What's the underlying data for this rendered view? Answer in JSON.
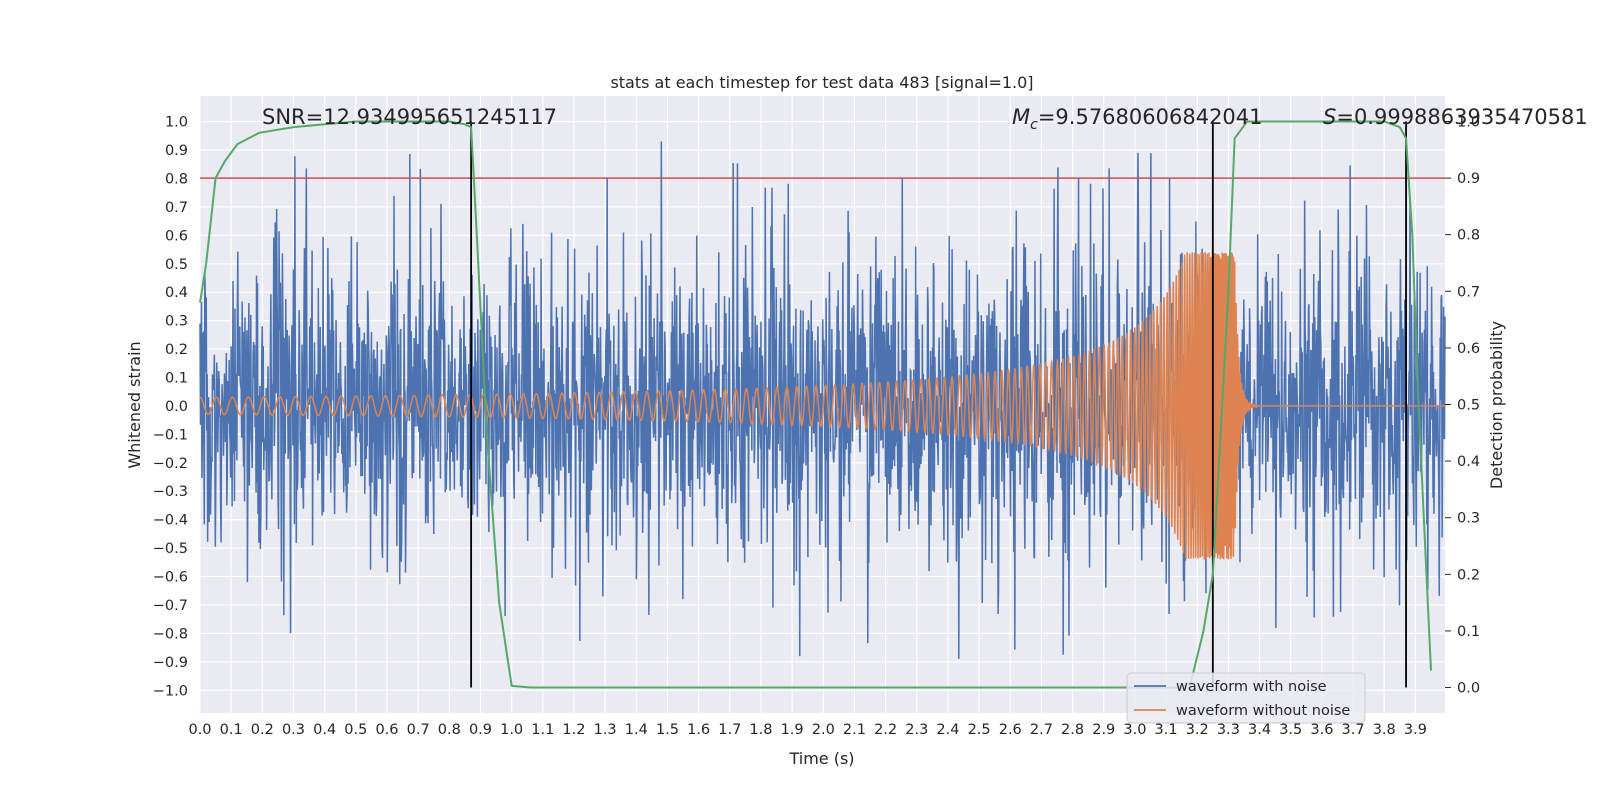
{
  "chart_data": {
    "type": "line",
    "title": "stats at each timestep for test data 483 [signal=1.0]",
    "xlabel": "Time (s)",
    "ylabel": "Whitened strain",
    "y2label": "Detection probability",
    "xlim": [
      0.0,
      3.995
    ],
    "ylim": [
      -1.08,
      1.09
    ],
    "y2lim": [
      -0.045,
      1.045
    ],
    "xticks": [
      "0.0",
      "0.1",
      "0.2",
      "0.3",
      "0.4",
      "0.5",
      "0.6",
      "0.7",
      "0.8",
      "0.9",
      "1.0",
      "1.1",
      "1.2",
      "1.3",
      "1.4",
      "1.5",
      "1.6",
      "1.7",
      "1.8",
      "1.9",
      "2.0",
      "2.1",
      "2.2",
      "2.3",
      "2.4",
      "2.5",
      "2.6",
      "2.7",
      "2.8",
      "2.9",
      "3.0",
      "3.1",
      "3.2",
      "3.3",
      "3.4",
      "3.5",
      "3.6",
      "3.7",
      "3.8",
      "3.9"
    ],
    "yticks": [
      "1.0",
      "0.9",
      "0.8",
      "0.7",
      "0.6",
      "0.5",
      "0.4",
      "0.3",
      "0.2",
      "0.1",
      "0.0",
      "−0.1",
      "−0.2",
      "−0.3",
      "−0.4",
      "−0.5",
      "−0.6",
      "−0.7",
      "−0.8",
      "−0.9",
      "−1.0"
    ],
    "y2ticks": [
      "1.0",
      "0.9",
      "0.8",
      "0.7",
      "0.6",
      "0.5",
      "0.4",
      "0.3",
      "0.2",
      "0.1",
      "0.0"
    ],
    "grid": true,
    "legend_position": "lower-right",
    "threshold_line": {
      "axis": "y2",
      "value": 0.9,
      "color": "#c44e52"
    },
    "vertical_markers": [
      {
        "x": 0.87,
        "y2_from": 0.0,
        "y2_to": 1.0
      },
      {
        "x": 3.25,
        "y2_from": 0.0,
        "y2_to": 1.0
      },
      {
        "x": 3.87,
        "y2_from": 0.0,
        "y2_to": 1.0
      }
    ],
    "annotations": {
      "snr": "SNR=12.934995651245117",
      "mc_symbol": "M",
      "mc_sub": "c",
      "mc_value": "=9.57680606842041",
      "s_symbol": "S",
      "s_value": "=0.9998863935470581"
    },
    "series": [
      {
        "name": "waveform with noise",
        "color": "#4c72b0",
        "axis": "y",
        "kind": "noise",
        "envelope_sigma": 0.26,
        "approx_min": -0.94,
        "approx_max": 1.0
      },
      {
        "name": "waveform without noise",
        "color": "#dd8452",
        "axis": "y",
        "kind": "chirp",
        "merger_time": 3.32,
        "peak_amplitude": 0.54,
        "early_amplitude": 0.03
      },
      {
        "name": "detection probability",
        "color": "#55a868",
        "axis": "y2",
        "x": [
          0.0,
          0.02,
          0.05,
          0.08,
          0.12,
          0.19,
          0.3,
          0.5,
          0.7,
          0.8,
          0.85,
          0.87,
          0.89,
          0.92,
          0.96,
          1.0,
          1.06,
          1.2,
          1.5,
          2.0,
          2.5,
          3.0,
          3.15,
          3.18,
          3.22,
          3.25,
          3.28,
          3.3,
          3.32,
          3.36,
          3.5,
          3.8,
          3.85,
          3.87,
          3.89,
          3.91,
          3.95
        ],
        "values": [
          0.68,
          0.75,
          0.9,
          0.93,
          0.96,
          0.98,
          0.99,
          1.0,
          1.0,
          1.0,
          0.995,
          0.99,
          0.78,
          0.45,
          0.15,
          0.003,
          0.0,
          0.0,
          0.0,
          0.0,
          0.0,
          0.0,
          0.0,
          0.01,
          0.1,
          0.2,
          0.5,
          0.7,
          0.97,
          1.0,
          1.0,
          1.0,
          0.99,
          0.97,
          0.8,
          0.5,
          0.03
        ]
      }
    ]
  }
}
